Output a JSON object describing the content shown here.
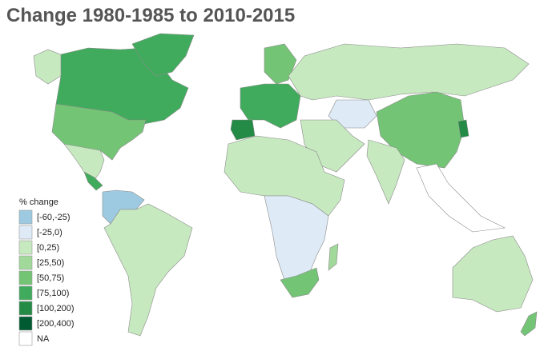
{
  "title": "Change 1980-1985 to 2010-2015",
  "legend": {
    "title": "% change",
    "items": [
      {
        "label": "[-60,-25)",
        "color": "#9ecae1"
      },
      {
        "label": "[-25,0)",
        "color": "#deebf7"
      },
      {
        "label": "[0,25)",
        "color": "#c7e9c0"
      },
      {
        "label": "[25,50)",
        "color": "#a1d99b"
      },
      {
        "label": "[50,75)",
        "color": "#74c476"
      },
      {
        "label": "[75,100)",
        "color": "#41ab5d"
      },
      {
        "label": "[100,200)",
        "color": "#238b45"
      },
      {
        "label": "[200,400)",
        "color": "#005a32"
      },
      {
        "label": "NA",
        "color": "#ffffff"
      }
    ]
  }
}
